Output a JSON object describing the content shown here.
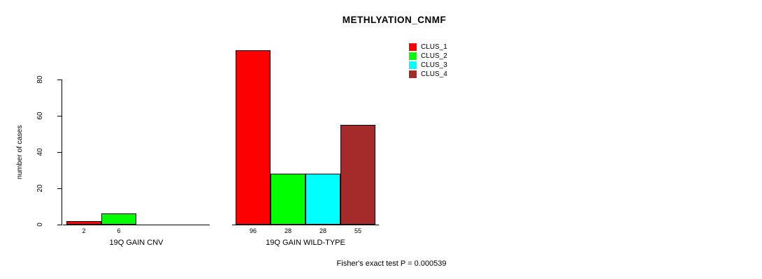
{
  "chart_data": {
    "type": "bar",
    "title": "METHLYATION_CNMF",
    "ylabel": "number of cases",
    "xlabel": "",
    "ylim": [
      0,
      100
    ],
    "yticks": [
      0,
      20,
      40,
      60,
      80
    ],
    "grid": false,
    "legend_position": "top-right",
    "series": [
      {
        "name": "CLUS_1",
        "color": "#FF0000"
      },
      {
        "name": "CLUS_2",
        "color": "#00FF00"
      },
      {
        "name": "CLUS_3",
        "color": "#00FFFF"
      },
      {
        "name": "CLUS_4",
        "color": "#A52A2A"
      }
    ],
    "groups": [
      {
        "label": "19Q GAIN CNV",
        "values": [
          2,
          6,
          0,
          0
        ],
        "bar_labels": [
          "2",
          "6",
          "",
          ""
        ]
      },
      {
        "label": "19Q GAIN WILD-TYPE",
        "values": [
          96,
          28,
          28,
          55
        ],
        "bar_labels": [
          "96",
          "28",
          "28",
          "55"
        ]
      }
    ],
    "annotation": "Fisher's exact test P = 0.000539"
  }
}
